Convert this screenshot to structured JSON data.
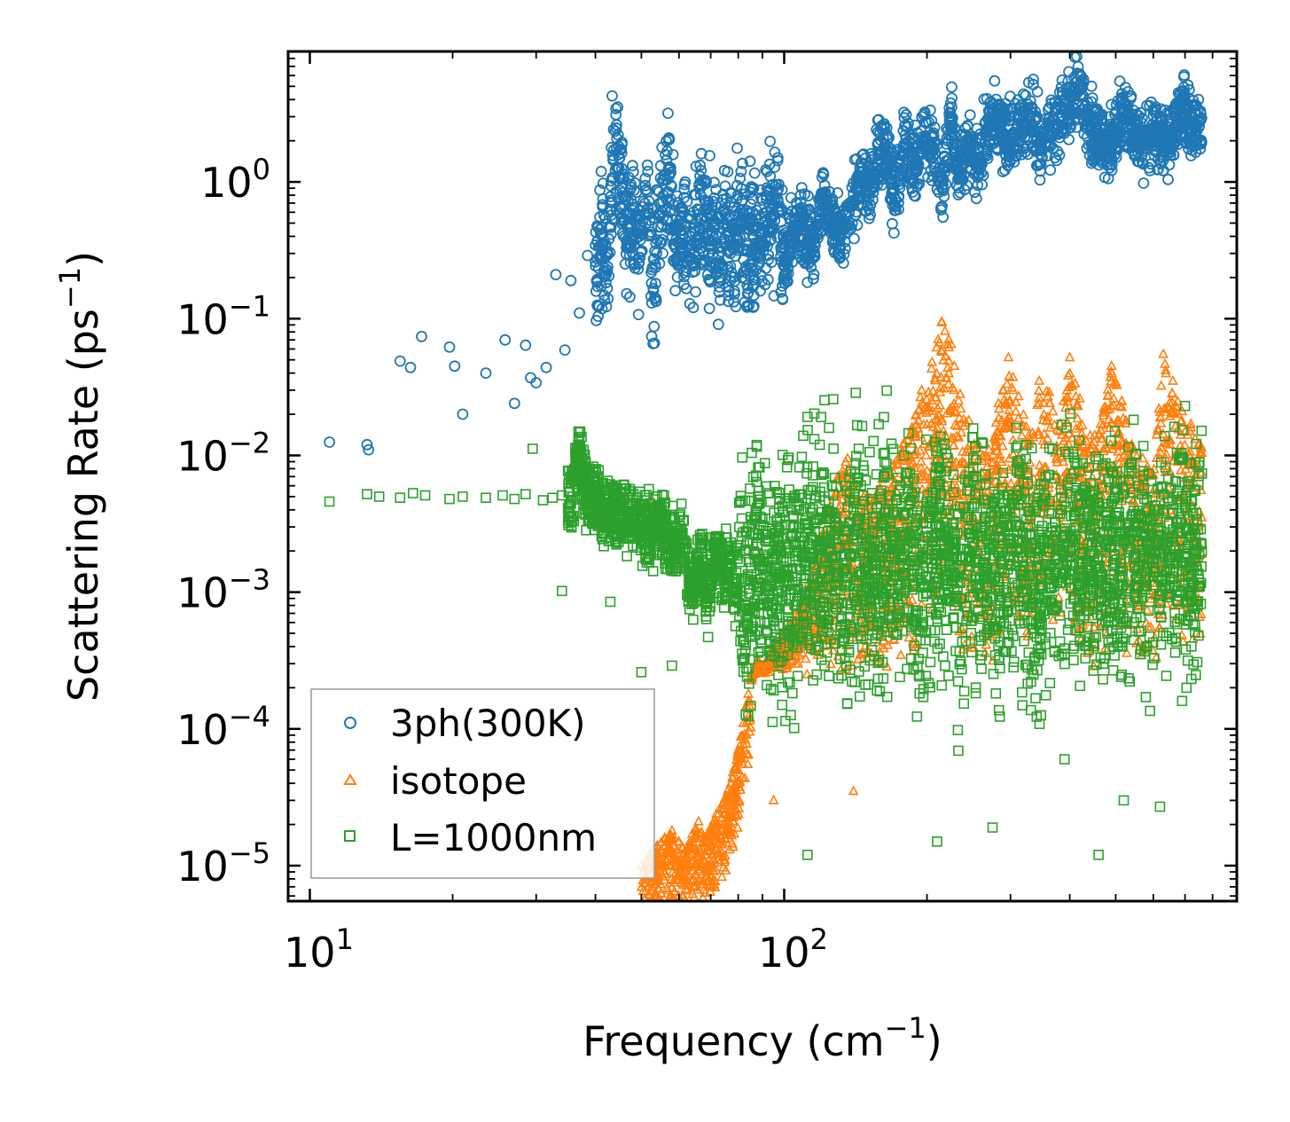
{
  "chart_data": {
    "type": "scatter",
    "x_scale": "log",
    "y_scale": "log",
    "xlim": [
      9,
      900
    ],
    "ylim": [
      5.5e-06,
      9
    ],
    "xlabel": "Frequency",
    "xlabel_unit": "(cm",
    "xlabel_exp": "−1",
    "xlabel_close": ")",
    "ylabel": "Scattering Rate",
    "ylabel_unit": "(ps",
    "ylabel_exp": "−1",
    "ylabel_close": ")",
    "grid": false,
    "legend_position": "lower-left",
    "x_ticks": [
      {
        "value": 10,
        "base": "10",
        "exp": "1"
      },
      {
        "value": 100,
        "base": "10",
        "exp": "2"
      }
    ],
    "y_ticks": [
      {
        "value": 1,
        "base": "10",
        "exp": "0"
      },
      {
        "value": 0.1,
        "base": "10",
        "exp": "−1"
      },
      {
        "value": 0.01,
        "base": "10",
        "exp": "−2"
      },
      {
        "value": 0.001,
        "base": "10",
        "exp": "−3"
      },
      {
        "value": 0.0001,
        "base": "10",
        "exp": "−4"
      },
      {
        "value": 1e-05,
        "base": "10",
        "exp": "−5"
      }
    ],
    "series": [
      {
        "name": "3ph(300K)",
        "marker": "circle",
        "color": "#1f77b4",
        "x": [
          11,
          13.2,
          13.3,
          15.5,
          16.3,
          17.2,
          19.7,
          20.2,
          21,
          23.5,
          25.8,
          27,
          28.5,
          29.2,
          30,
          31.5,
          33,
          34.5,
          35.5,
          37,
          38.5,
          40,
          41.5,
          42.5,
          43.5,
          45,
          46.5,
          48,
          49.5,
          51,
          53,
          55,
          57,
          59,
          61,
          63,
          65,
          67,
          69,
          71,
          73,
          75,
          77,
          79,
          81,
          83,
          85,
          88,
          91,
          94,
          97,
          100,
          104,
          108,
          112,
          116,
          120,
          125,
          130,
          135,
          140,
          146,
          152,
          158,
          165,
          172,
          180,
          188,
          196,
          205,
          215,
          225,
          235,
          245,
          257,
          270,
          283,
          297,
          312,
          328,
          345,
          362,
          380,
          400,
          420,
          442,
          465,
          490,
          515,
          540,
          570,
          600,
          630,
          660,
          690,
          720,
          750
        ],
        "y": [
          0.0125,
          0.012,
          0.011,
          0.049,
          0.044,
          0.074,
          0.062,
          0.045,
          0.02,
          0.04,
          0.07,
          0.024,
          0.064,
          0.037,
          0.034,
          0.044,
          0.21,
          0.059,
          0.19,
          0.11,
          0.29,
          0.26,
          0.42,
          0.14,
          1.56,
          1.5,
          0.33,
          0.62,
          0.28,
          0.94,
          0.16,
          0.71,
          1.23,
          0.33,
          0.41,
          0.27,
          0.34,
          0.53,
          0.47,
          0.39,
          0.2,
          0.58,
          0.3,
          0.46,
          0.62,
          0.24,
          0.5,
          0.3,
          0.52,
          0.43,
          0.72,
          0.26,
          0.44,
          0.54,
          0.38,
          0.36,
          0.75,
          0.65,
          0.4,
          0.47,
          0.68,
          1.1,
          0.86,
          1.48,
          1.7,
          0.62,
          2.2,
          1.25,
          2.05,
          1.8,
          0.9,
          2.9,
          1.2,
          1.95,
          1.3,
          2.6,
          2.95,
          1.85,
          2.3,
          3.1,
          1.95,
          2.4,
          2.9,
          3.85,
          4.7,
          2.4,
          2.1,
          1.85,
          3.2,
          2.65,
          1.9,
          2.5,
          1.95,
          2.3,
          3.9,
          2.25,
          2.55
        ]
      },
      {
        "name": "isotope",
        "marker": "triangle",
        "color": "#ff7f0e",
        "x": [
          50,
          52,
          54,
          56,
          58,
          60,
          62,
          64,
          66,
          68,
          70,
          72,
          74,
          76,
          78,
          80,
          82,
          84,
          86,
          88,
          90,
          93,
          96,
          99,
          102,
          106,
          110,
          115,
          120,
          125,
          130,
          136,
          142,
          148,
          155,
          162,
          170,
          178,
          186,
          195,
          205,
          215,
          225,
          235,
          245,
          257,
          270,
          283,
          297,
          312,
          328,
          345,
          362,
          380,
          400,
          420,
          442,
          465,
          490,
          515,
          540,
          570,
          600,
          630,
          660,
          690,
          720,
          750
        ],
        "y": [
          1e-05,
          1.2e-05,
          1.4e-05,
          1.6e-05,
          1.8e-05,
          1.5e-05,
          1.3e-05,
          1.7e-05,
          2.1e-05,
          1.6e-05,
          1.9e-05,
          2.4e-05,
          2.8e-05,
          3.5e-05,
          4.8e-05,
          7e-05,
          0.00011,
          0.00018,
          0.00026,
          0.00032,
          0.00027,
          0.00035,
          0.00042,
          0.00048,
          0.00055,
          0.0007,
          0.0009,
          0.0015,
          0.0026,
          0.004,
          0.007,
          0.0095,
          0.006,
          0.0052,
          0.0048,
          0.0075,
          0.0085,
          0.012,
          0.016,
          0.03,
          0.048,
          0.095,
          0.065,
          0.028,
          0.018,
          0.012,
          0.011,
          0.024,
          0.052,
          0.027,
          0.014,
          0.035,
          0.029,
          0.015,
          0.052,
          0.026,
          0.014,
          0.017,
          0.045,
          0.025,
          0.012,
          0.0095,
          0.0072,
          0.055,
          0.035,
          0.021,
          0.017,
          0.012
        ]
      },
      {
        "name": "L=1000nm",
        "marker": "square",
        "color": "#2ca02c",
        "x": [
          11,
          13.2,
          14,
          15.5,
          16.5,
          17.5,
          19.7,
          21,
          23.5,
          25.5,
          27,
          28.5,
          29.5,
          31,
          32.5,
          34,
          35.5,
          37,
          38.5,
          40,
          41.5,
          43,
          44.5,
          46,
          47.5,
          49,
          50.5,
          52,
          53.5,
          55,
          57,
          59,
          61,
          63,
          65,
          67,
          69,
          71,
          73,
          75,
          77,
          79,
          81,
          83,
          85,
          88,
          91,
          94,
          97,
          100,
          104,
          108,
          112,
          116,
          120,
          125,
          130,
          135,
          140,
          146,
          152,
          158,
          165,
          172,
          180,
          188,
          196,
          205,
          215,
          225,
          235,
          245,
          257,
          270,
          283,
          297,
          312,
          328,
          345,
          362,
          380,
          400,
          420,
          442,
          465,
          490,
          515,
          540,
          570,
          600,
          630,
          660,
          690,
          720,
          750
        ],
        "y": [
          0.0046,
          0.0052,
          0.005,
          0.0049,
          0.0053,
          0.0051,
          0.0048,
          0.005,
          0.0049,
          0.0051,
          0.0048,
          0.0052,
          0.0112,
          0.0047,
          0.0049,
          0.0051,
          0.0046,
          0.0103,
          0.0044,
          0.0048,
          0.0036,
          0.0041,
          0.0035,
          0.0039,
          0.0032,
          0.0034,
          0.0029,
          0.0027,
          0.0031,
          0.0028,
          0.0025,
          0.0022,
          0.0024,
          0.0012,
          0.0011,
          0.0019,
          0.0009,
          0.0021,
          0.0016,
          0.0014,
          0.0018,
          0.0009,
          0.0022,
          0.0006,
          0.0012,
          0.0025,
          0.0015,
          0.0009,
          0.0019,
          0.0012,
          0.0015,
          0.0022,
          0.0018,
          0.0028,
          0.0014,
          0.0021,
          0.0016,
          0.0011,
          0.0019,
          0.0025,
          0.0012,
          0.0018,
          0.0022,
          0.0013,
          0.0024,
          0.0016,
          0.0011,
          0.0019,
          0.0026,
          0.0014,
          0.0009,
          0.002,
          0.0015,
          0.0023,
          0.0012,
          0.0018,
          0.0024,
          0.0013,
          0.0009,
          0.0021,
          0.0016,
          0.0025,
          0.0012,
          0.0019,
          0.0014,
          0.0022,
          0.0011,
          0.0027,
          0.0016,
          0.0013,
          0.0021,
          0.0018,
          0.0024,
          0.0015,
          0.0019
        ]
      }
    ],
    "isotope_min_points": [
      {
        "x": 60,
        "y": 1.05e-05
      },
      {
        "x": 75,
        "y": 1.1e-05
      },
      {
        "x": 95,
        "y": 3e-05
      },
      {
        "x": 140,
        "y": 3.5e-05
      }
    ],
    "green_outliers": [
      {
        "x": 34,
        "y": 0.00102
      },
      {
        "x": 43,
        "y": 0.00085
      },
      {
        "x": 50,
        "y": 0.00026
      },
      {
        "x": 58,
        "y": 0.00029
      },
      {
        "x": 112,
        "y": 1.2e-05
      },
      {
        "x": 210,
        "y": 1.5e-05
      },
      {
        "x": 275,
        "y": 1.9e-05
      },
      {
        "x": 390,
        "y": 6e-05
      },
      {
        "x": 460,
        "y": 1.2e-05
      },
      {
        "x": 520,
        "y": 3e-05
      },
      {
        "x": 620,
        "y": 2.7e-05
      },
      {
        "x": 690,
        "y": 0.00016
      },
      {
        "x": 700,
        "y": 0.023
      }
    ]
  }
}
